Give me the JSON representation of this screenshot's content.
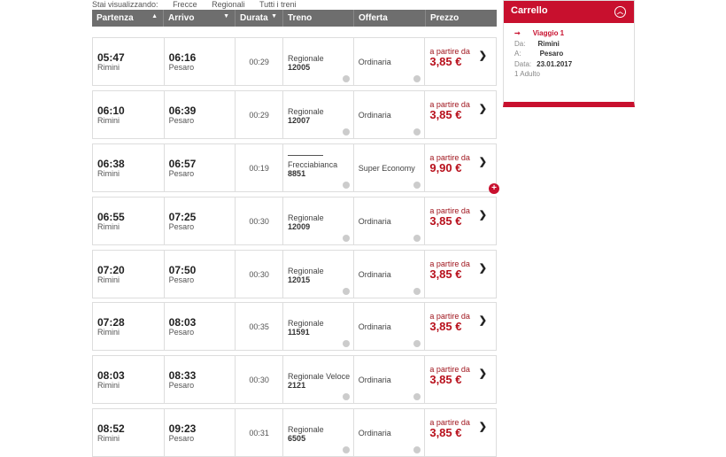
{
  "filters": {
    "label": "Stai visualizzando:",
    "options": [
      "Frecce",
      "Regionali",
      "Tutti i treni"
    ]
  },
  "table": {
    "headers": [
      "Partenza",
      "Arrivo",
      "Durata",
      "Treno",
      "Offerta",
      "Prezzo"
    ]
  },
  "rows": [
    {
      "dep": "05:47",
      "from": "Rimini",
      "arr": "06:16",
      "to": "Pesaro",
      "dur": "00:29",
      "type": "Regionale",
      "num": "12005",
      "offer": "Ordinaria",
      "from_label": "a partire da",
      "price": "3,85 €"
    },
    {
      "dep": "06:10",
      "from": "Rimini",
      "arr": "06:39",
      "to": "Pesaro",
      "dur": "00:29",
      "type": "Regionale",
      "num": "12007",
      "offer": "Ordinaria",
      "from_label": "a partire da",
      "price": "3,85 €"
    },
    {
      "dep": "06:38",
      "from": "Rimini",
      "arr": "06:57",
      "to": "Pesaro",
      "dur": "00:19",
      "type": "Frecciabianca",
      "num": "8851",
      "offer": "Super Economy",
      "from_label": "a partire da",
      "price": "9,90 €",
      "logo": "FRECCIABIANCA",
      "plus": "+"
    },
    {
      "dep": "06:55",
      "from": "Rimini",
      "arr": "07:25",
      "to": "Pesaro",
      "dur": "00:30",
      "type": "Regionale",
      "num": "12009",
      "offer": "Ordinaria",
      "from_label": "a partire da",
      "price": "3,85 €"
    },
    {
      "dep": "07:20",
      "from": "Rimini",
      "arr": "07:50",
      "to": "Pesaro",
      "dur": "00:30",
      "type": "Regionale",
      "num": "12015",
      "offer": "Ordinaria",
      "from_label": "a partire da",
      "price": "3,85 €"
    },
    {
      "dep": "07:28",
      "from": "Rimini",
      "arr": "08:03",
      "to": "Pesaro",
      "dur": "00:35",
      "type": "Regionale",
      "num": "11591",
      "offer": "Ordinaria",
      "from_label": "a partire da",
      "price": "3,85 €"
    },
    {
      "dep": "08:03",
      "from": "Rimini",
      "arr": "08:33",
      "to": "Pesaro",
      "dur": "00:30",
      "type": "Regionale Veloce",
      "num": "2121",
      "offer": "Ordinaria",
      "from_label": "a partire da",
      "price": "3,85 €"
    },
    {
      "dep": "08:52",
      "from": "Rimini",
      "arr": "09:23",
      "to": "Pesaro",
      "dur": "00:31",
      "type": "Regionale",
      "num": "6505",
      "offer": "Ordinaria",
      "from_label": "a partire da",
      "price": "3,85 €"
    }
  ],
  "cart": {
    "title": "Carrello",
    "trip": "Viaggio 1",
    "da_label": "Da:",
    "da": "Rimini",
    "a_label": "A:",
    "a": "Pesaro",
    "data_label": "Data:",
    "data": "23.01.2017",
    "passengers": "1 Adulto"
  },
  "colors": {
    "accent": "#c8102e",
    "header": "#6e6e6e",
    "price": "#b8101c"
  }
}
